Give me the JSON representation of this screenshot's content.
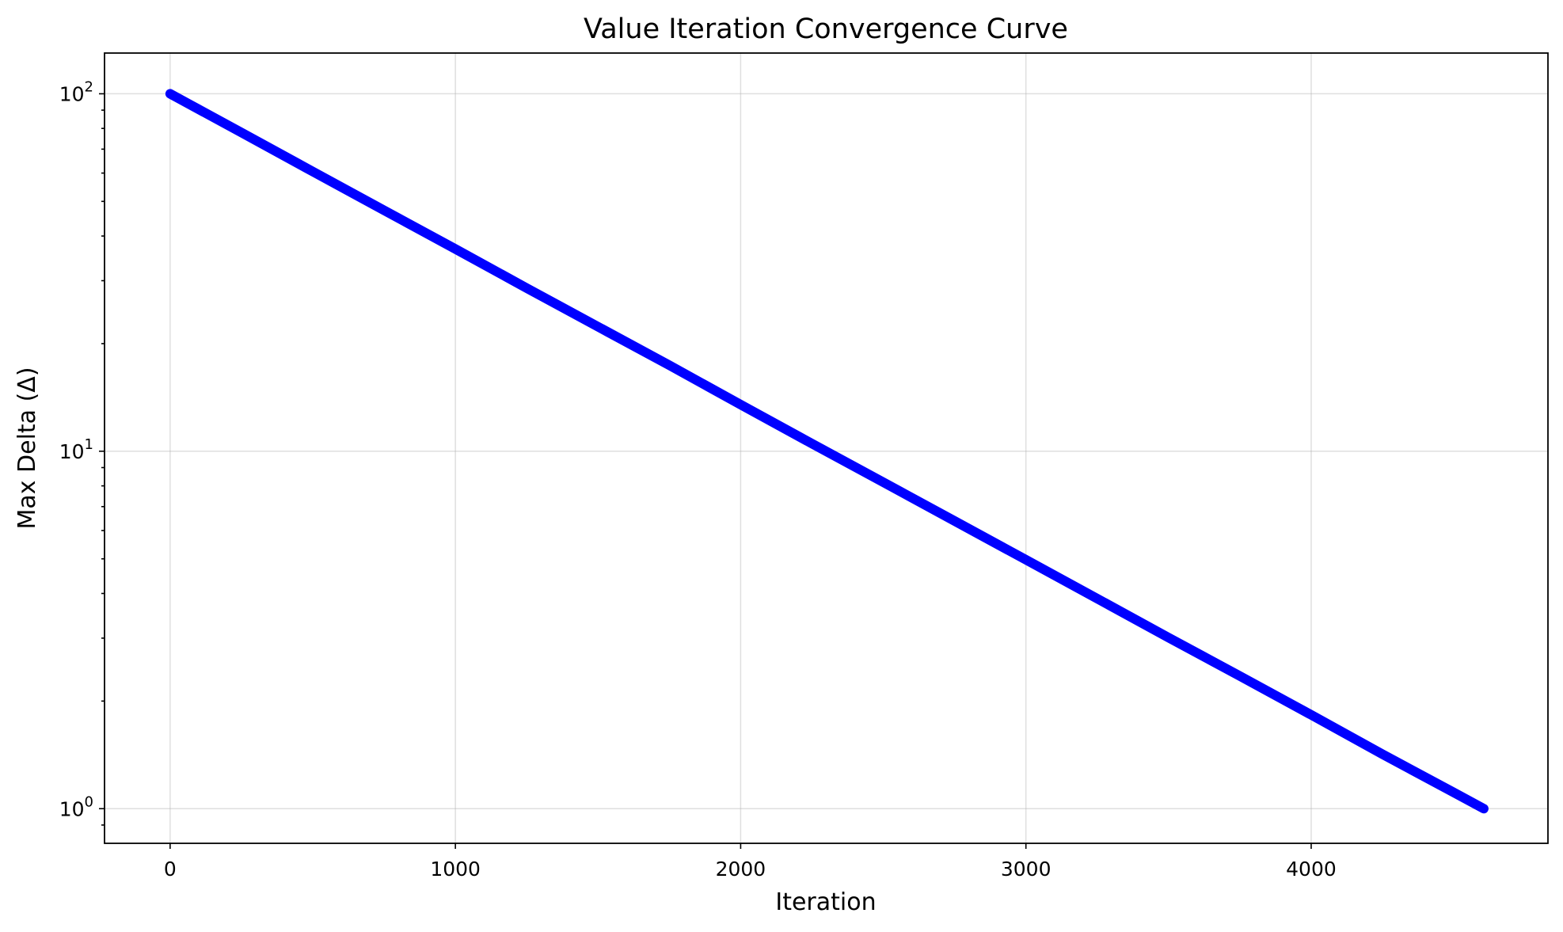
{
  "chart_data": {
    "type": "line",
    "title": "Value Iteration Convergence Curve",
    "xlabel": "Iteration",
    "ylabel": "Max Delta (Δ)",
    "xlim": [
      -230,
      4830
    ],
    "ylim": [
      0.8,
      130
    ],
    "yscale": "log",
    "grid": true,
    "legend": "none",
    "x_ticks": [
      {
        "value": 0,
        "label": "0"
      },
      {
        "value": 1000,
        "label": "1000"
      },
      {
        "value": 2000,
        "label": "2000"
      },
      {
        "value": 3000,
        "label": "3000"
      },
      {
        "value": 4000,
        "label": "4000"
      }
    ],
    "y_ticks": [
      {
        "value": 1,
        "base": "10",
        "exp": "0"
      },
      {
        "value": 10,
        "base": "10",
        "exp": "1"
      },
      {
        "value": 100,
        "base": "10",
        "exp": "2"
      }
    ],
    "series": [
      {
        "color": "#0000ff",
        "x": [
          0,
          250,
          500,
          750,
          1000,
          1250,
          1500,
          1750,
          2000,
          2250,
          2500,
          2750,
          3000,
          3250,
          3500,
          3750,
          4000,
          4250,
          4500,
          4605
        ],
        "y": [
          100,
          77.9,
          60.6,
          47.2,
          36.8,
          28.6,
          22.3,
          17.4,
          13.5,
          10.5,
          8.19,
          6.38,
          4.97,
          3.87,
          3.01,
          2.35,
          1.83,
          1.42,
          1.11,
          1.0
        ]
      }
    ]
  }
}
